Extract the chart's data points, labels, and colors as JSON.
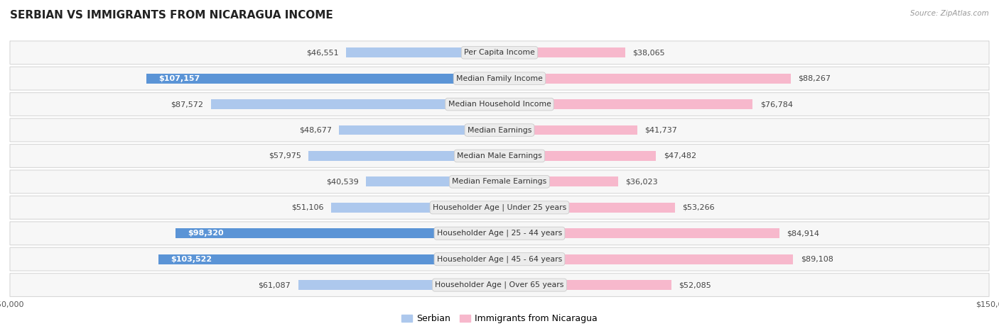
{
  "title": "SERBIAN VS IMMIGRANTS FROM NICARAGUA INCOME",
  "source": "Source: ZipAtlas.com",
  "categories": [
    "Per Capita Income",
    "Median Family Income",
    "Median Household Income",
    "Median Earnings",
    "Median Male Earnings",
    "Median Female Earnings",
    "Householder Age | Under 25 years",
    "Householder Age | 25 - 44 years",
    "Householder Age | 45 - 64 years",
    "Householder Age | Over 65 years"
  ],
  "serbian_values": [
    46551,
    107157,
    87572,
    48677,
    57975,
    40539,
    51106,
    98320,
    103522,
    61087
  ],
  "nicaragua_values": [
    38065,
    88267,
    76784,
    41737,
    47482,
    36023,
    53266,
    84914,
    89108,
    52085
  ],
  "serbian_labels": [
    "$46,551",
    "$107,157",
    "$87,572",
    "$48,677",
    "$57,975",
    "$40,539",
    "$51,106",
    "$98,320",
    "$103,522",
    "$61,087"
  ],
  "nicaragua_labels": [
    "$38,065",
    "$88,267",
    "$76,784",
    "$41,737",
    "$47,482",
    "$36,023",
    "$53,266",
    "$84,914",
    "$89,108",
    "$52,085"
  ],
  "max_value": 150000,
  "serbian_light_color": "#adc8ed",
  "nicaragua_light_color": "#f7b8cc",
  "serbian_dark_color": "#5b94d6",
  "nicaragua_dark_color": "#e8607a",
  "bar_height": 0.38,
  "bg_color": "#ffffff",
  "row_bg_color": "#f7f7f7",
  "row_border_color": "#d8d8d8",
  "title_fontsize": 11,
  "label_fontsize": 7.8,
  "value_fontsize": 8,
  "legend_fontsize": 9,
  "inside_label_threshold": 0.6
}
